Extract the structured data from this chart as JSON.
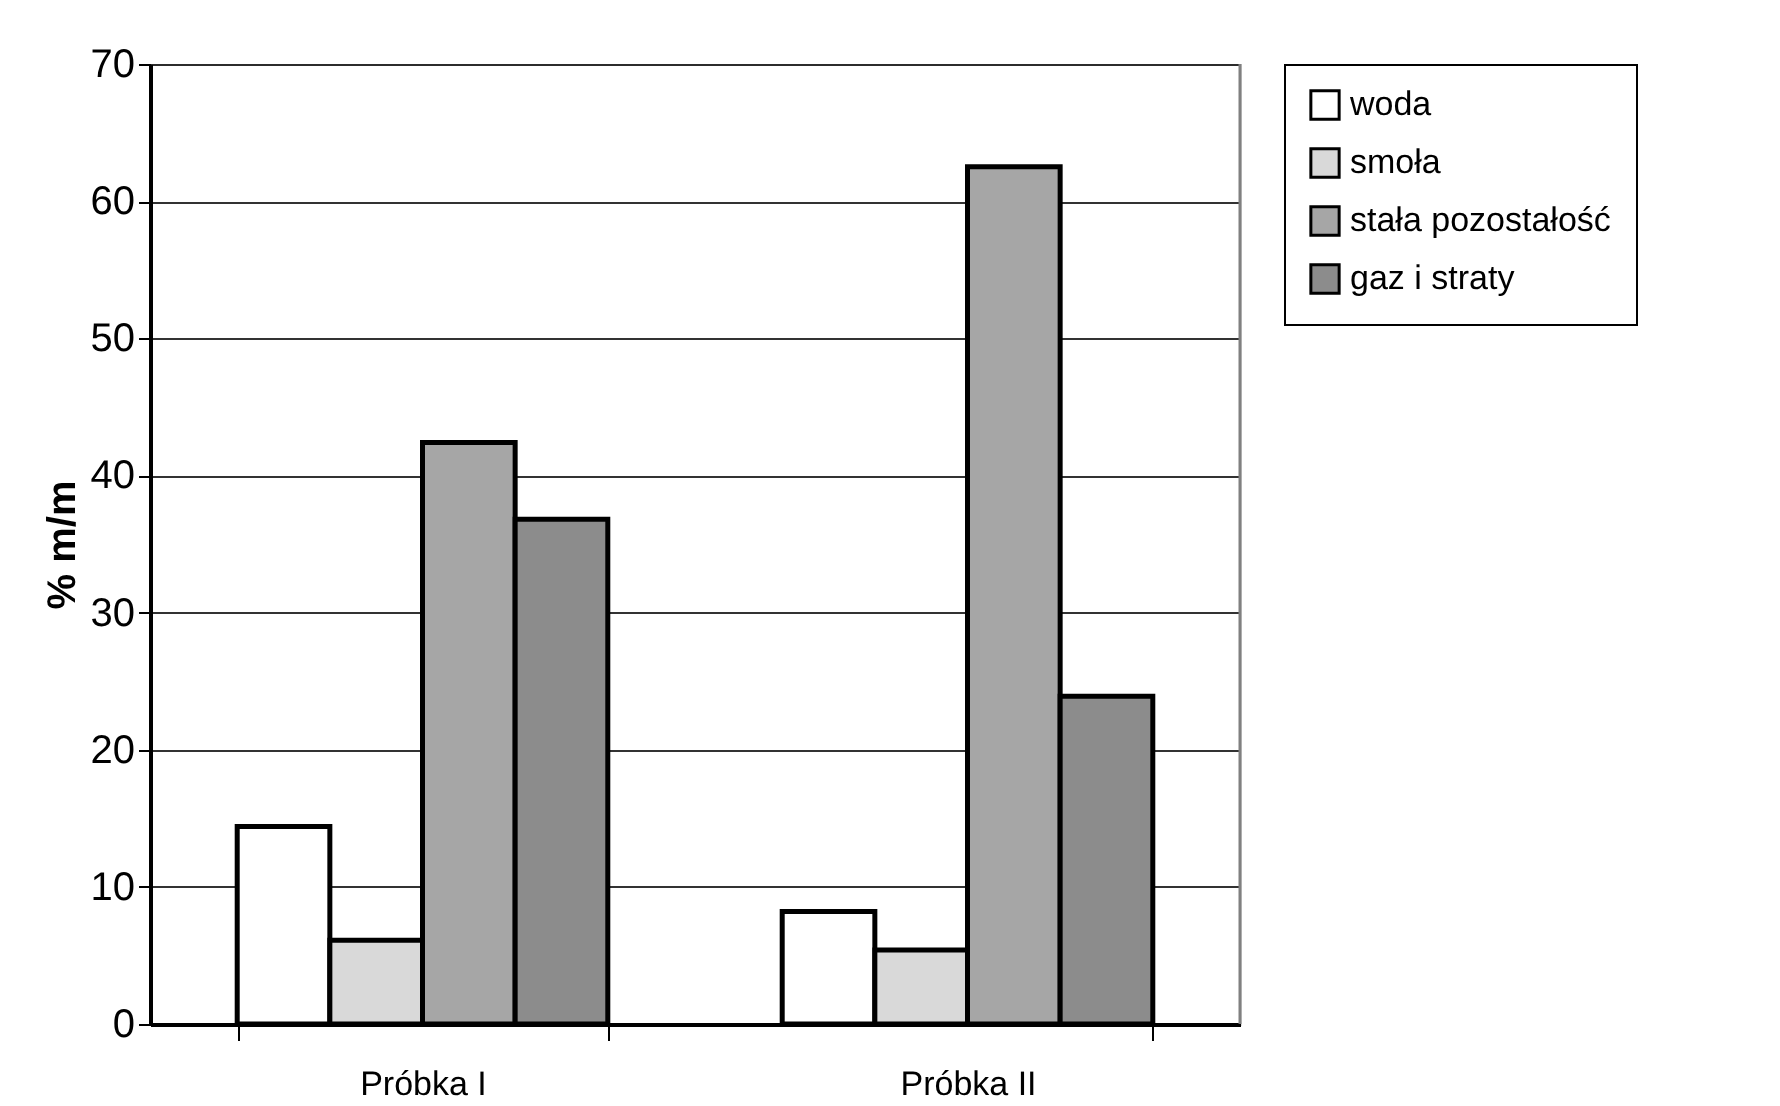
{
  "chart_data": {
    "type": "bar",
    "ylabel": "% m/m",
    "categories": [
      "Próbka I",
      "Próbka II"
    ],
    "series": [
      {
        "name": "woda",
        "color": "#ffffff",
        "values": [
          14.4,
          8.2
        ]
      },
      {
        "name": "smoła",
        "color": "#d9d9d9",
        "values": [
          6.1,
          5.4
        ]
      },
      {
        "name": "stała pozostałość",
        "color": "#a6a6a6",
        "values": [
          42.4,
          62.5
        ]
      },
      {
        "name": "gaz i straty",
        "color": "#8c8c8c",
        "values": [
          36.8,
          23.9
        ]
      }
    ],
    "ylim": [
      0,
      70
    ],
    "yticks": [
      0,
      10,
      20,
      30,
      40,
      50,
      60,
      70
    ],
    "grid": "y",
    "legend": "right"
  }
}
